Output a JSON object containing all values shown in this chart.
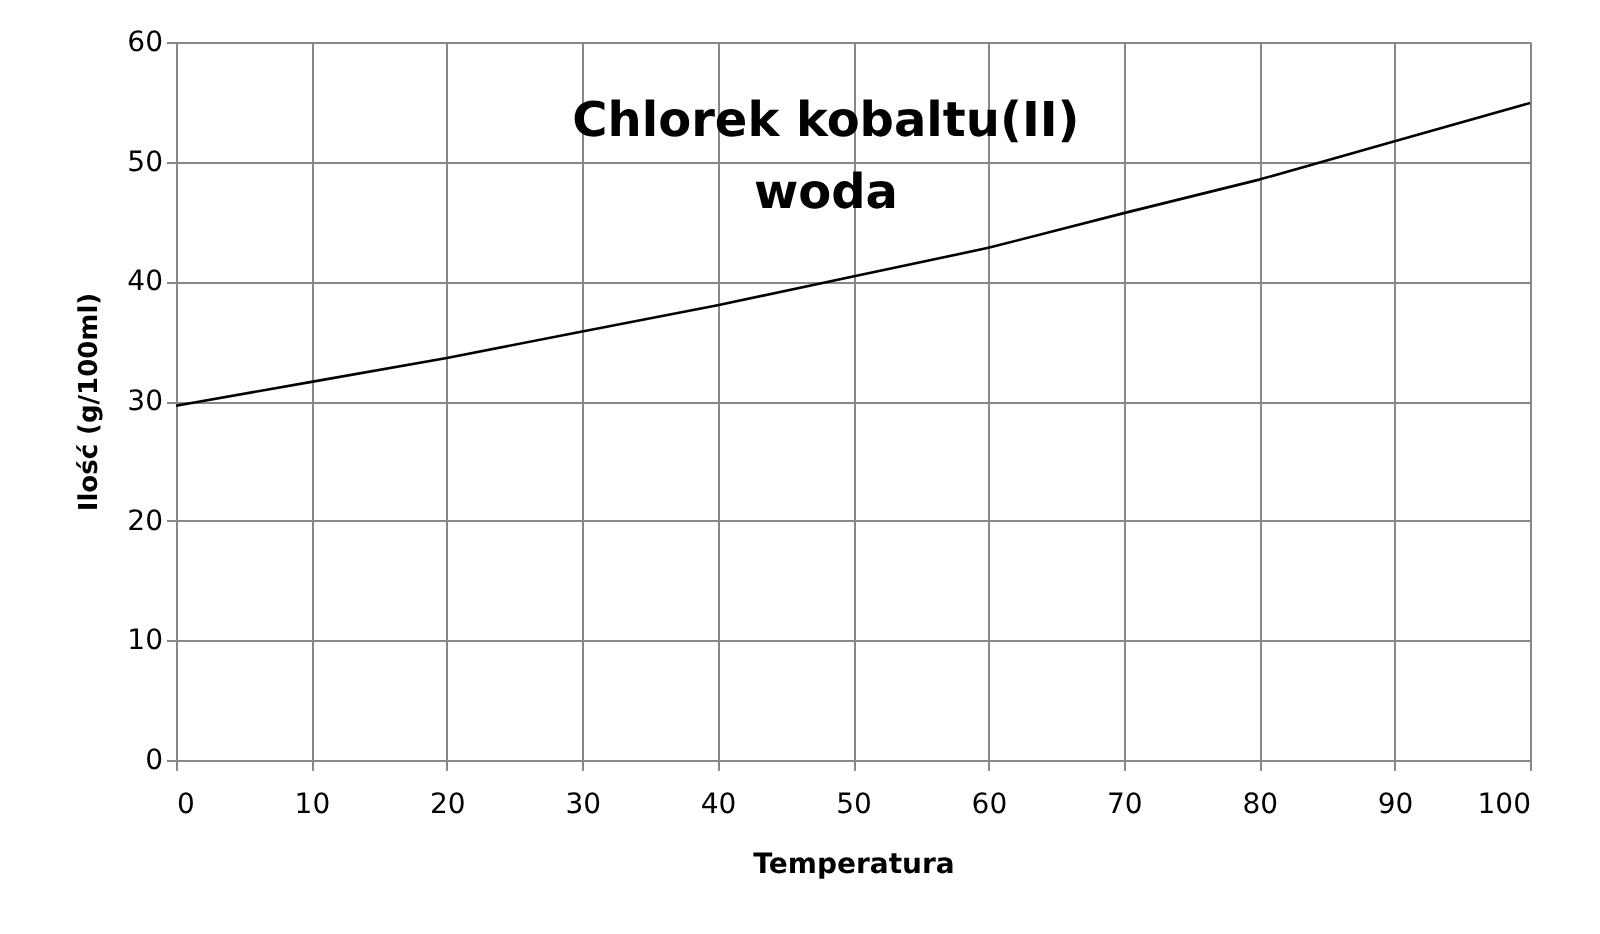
{
  "chart_data": {
    "type": "line",
    "title": "Chlorek kobaltu(II)\nwoda",
    "xlabel": "Temperatura",
    "ylabel": "Ilość (g/100ml)",
    "x": [
      0,
      10,
      20,
      30,
      40,
      50,
      60,
      70,
      80,
      90,
      100
    ],
    "series": [
      {
        "color": "#000000",
        "values": [
          29.6,
          31.6,
          33.6,
          35.8,
          38.0,
          40.4,
          42.8,
          45.7,
          48.5,
          51.7,
          54.9
        ]
      }
    ],
    "xlim": [
      0,
      100
    ],
    "xticks": [
      0,
      10,
      20,
      30,
      40,
      50,
      60,
      70,
      80,
      90,
      100
    ],
    "ylim": [
      0,
      60
    ],
    "yticks": [
      0,
      10,
      20,
      30,
      40,
      50,
      60
    ],
    "grid": true,
    "marker": "none",
    "line_style": "solid"
  }
}
